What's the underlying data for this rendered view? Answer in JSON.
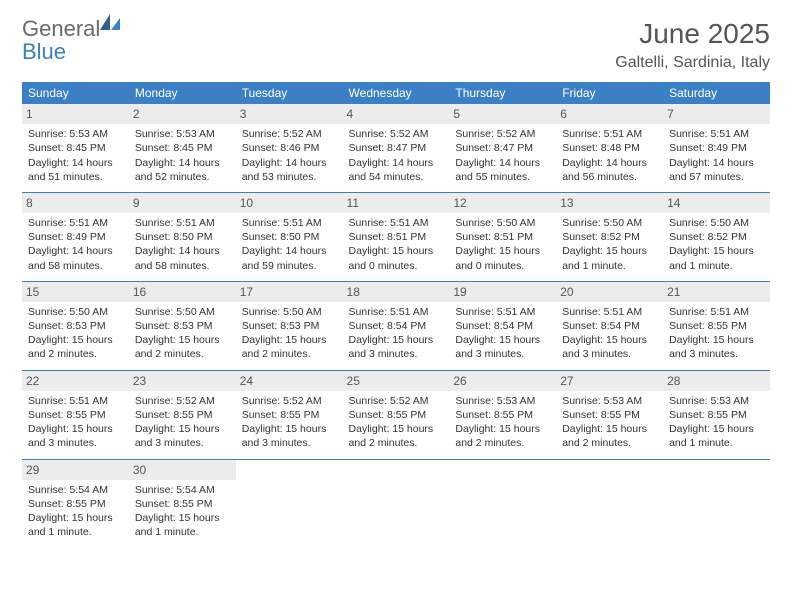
{
  "logo": {
    "text1": "General",
    "text2": "Blue"
  },
  "title": "June 2025",
  "location": "Galtelli, Sardinia, Italy",
  "colors": {
    "header_bg": "#3b7fc4",
    "header_text": "#ffffff",
    "daynum_bg": "#ececec",
    "text": "#333333",
    "page_bg": "#ffffff"
  },
  "fonts": {
    "body_size_pt": 10.5,
    "title_size_pt": 28,
    "location_size_pt": 16,
    "dayname_size_pt": 12
  },
  "day_names": [
    "Sunday",
    "Monday",
    "Tuesday",
    "Wednesday",
    "Thursday",
    "Friday",
    "Saturday"
  ],
  "weeks": [
    [
      {
        "n": "1",
        "sr": "Sunrise: 5:53 AM",
        "ss": "Sunset: 8:45 PM",
        "d1": "Daylight: 14 hours",
        "d2": "and 51 minutes."
      },
      {
        "n": "2",
        "sr": "Sunrise: 5:53 AM",
        "ss": "Sunset: 8:45 PM",
        "d1": "Daylight: 14 hours",
        "d2": "and 52 minutes."
      },
      {
        "n": "3",
        "sr": "Sunrise: 5:52 AM",
        "ss": "Sunset: 8:46 PM",
        "d1": "Daylight: 14 hours",
        "d2": "and 53 minutes."
      },
      {
        "n": "4",
        "sr": "Sunrise: 5:52 AM",
        "ss": "Sunset: 8:47 PM",
        "d1": "Daylight: 14 hours",
        "d2": "and 54 minutes."
      },
      {
        "n": "5",
        "sr": "Sunrise: 5:52 AM",
        "ss": "Sunset: 8:47 PM",
        "d1": "Daylight: 14 hours",
        "d2": "and 55 minutes."
      },
      {
        "n": "6",
        "sr": "Sunrise: 5:51 AM",
        "ss": "Sunset: 8:48 PM",
        "d1": "Daylight: 14 hours",
        "d2": "and 56 minutes."
      },
      {
        "n": "7",
        "sr": "Sunrise: 5:51 AM",
        "ss": "Sunset: 8:49 PM",
        "d1": "Daylight: 14 hours",
        "d2": "and 57 minutes."
      }
    ],
    [
      {
        "n": "8",
        "sr": "Sunrise: 5:51 AM",
        "ss": "Sunset: 8:49 PM",
        "d1": "Daylight: 14 hours",
        "d2": "and 58 minutes."
      },
      {
        "n": "9",
        "sr": "Sunrise: 5:51 AM",
        "ss": "Sunset: 8:50 PM",
        "d1": "Daylight: 14 hours",
        "d2": "and 58 minutes."
      },
      {
        "n": "10",
        "sr": "Sunrise: 5:51 AM",
        "ss": "Sunset: 8:50 PM",
        "d1": "Daylight: 14 hours",
        "d2": "and 59 minutes."
      },
      {
        "n": "11",
        "sr": "Sunrise: 5:51 AM",
        "ss": "Sunset: 8:51 PM",
        "d1": "Daylight: 15 hours",
        "d2": "and 0 minutes."
      },
      {
        "n": "12",
        "sr": "Sunrise: 5:50 AM",
        "ss": "Sunset: 8:51 PM",
        "d1": "Daylight: 15 hours",
        "d2": "and 0 minutes."
      },
      {
        "n": "13",
        "sr": "Sunrise: 5:50 AM",
        "ss": "Sunset: 8:52 PM",
        "d1": "Daylight: 15 hours",
        "d2": "and 1 minute."
      },
      {
        "n": "14",
        "sr": "Sunrise: 5:50 AM",
        "ss": "Sunset: 8:52 PM",
        "d1": "Daylight: 15 hours",
        "d2": "and 1 minute."
      }
    ],
    [
      {
        "n": "15",
        "sr": "Sunrise: 5:50 AM",
        "ss": "Sunset: 8:53 PM",
        "d1": "Daylight: 15 hours",
        "d2": "and 2 minutes."
      },
      {
        "n": "16",
        "sr": "Sunrise: 5:50 AM",
        "ss": "Sunset: 8:53 PM",
        "d1": "Daylight: 15 hours",
        "d2": "and 2 minutes."
      },
      {
        "n": "17",
        "sr": "Sunrise: 5:50 AM",
        "ss": "Sunset: 8:53 PM",
        "d1": "Daylight: 15 hours",
        "d2": "and 2 minutes."
      },
      {
        "n": "18",
        "sr": "Sunrise: 5:51 AM",
        "ss": "Sunset: 8:54 PM",
        "d1": "Daylight: 15 hours",
        "d2": "and 3 minutes."
      },
      {
        "n": "19",
        "sr": "Sunrise: 5:51 AM",
        "ss": "Sunset: 8:54 PM",
        "d1": "Daylight: 15 hours",
        "d2": "and 3 minutes."
      },
      {
        "n": "20",
        "sr": "Sunrise: 5:51 AM",
        "ss": "Sunset: 8:54 PM",
        "d1": "Daylight: 15 hours",
        "d2": "and 3 minutes."
      },
      {
        "n": "21",
        "sr": "Sunrise: 5:51 AM",
        "ss": "Sunset: 8:55 PM",
        "d1": "Daylight: 15 hours",
        "d2": "and 3 minutes."
      }
    ],
    [
      {
        "n": "22",
        "sr": "Sunrise: 5:51 AM",
        "ss": "Sunset: 8:55 PM",
        "d1": "Daylight: 15 hours",
        "d2": "and 3 minutes."
      },
      {
        "n": "23",
        "sr": "Sunrise: 5:52 AM",
        "ss": "Sunset: 8:55 PM",
        "d1": "Daylight: 15 hours",
        "d2": "and 3 minutes."
      },
      {
        "n": "24",
        "sr": "Sunrise: 5:52 AM",
        "ss": "Sunset: 8:55 PM",
        "d1": "Daylight: 15 hours",
        "d2": "and 3 minutes."
      },
      {
        "n": "25",
        "sr": "Sunrise: 5:52 AM",
        "ss": "Sunset: 8:55 PM",
        "d1": "Daylight: 15 hours",
        "d2": "and 2 minutes."
      },
      {
        "n": "26",
        "sr": "Sunrise: 5:53 AM",
        "ss": "Sunset: 8:55 PM",
        "d1": "Daylight: 15 hours",
        "d2": "and 2 minutes."
      },
      {
        "n": "27",
        "sr": "Sunrise: 5:53 AM",
        "ss": "Sunset: 8:55 PM",
        "d1": "Daylight: 15 hours",
        "d2": "and 2 minutes."
      },
      {
        "n": "28",
        "sr": "Sunrise: 5:53 AM",
        "ss": "Sunset: 8:55 PM",
        "d1": "Daylight: 15 hours",
        "d2": "and 1 minute."
      }
    ],
    [
      {
        "n": "29",
        "sr": "Sunrise: 5:54 AM",
        "ss": "Sunset: 8:55 PM",
        "d1": "Daylight: 15 hours",
        "d2": "and 1 minute."
      },
      {
        "n": "30",
        "sr": "Sunrise: 5:54 AM",
        "ss": "Sunset: 8:55 PM",
        "d1": "Daylight: 15 hours",
        "d2": "and 1 minute."
      },
      null,
      null,
      null,
      null,
      null
    ]
  ]
}
